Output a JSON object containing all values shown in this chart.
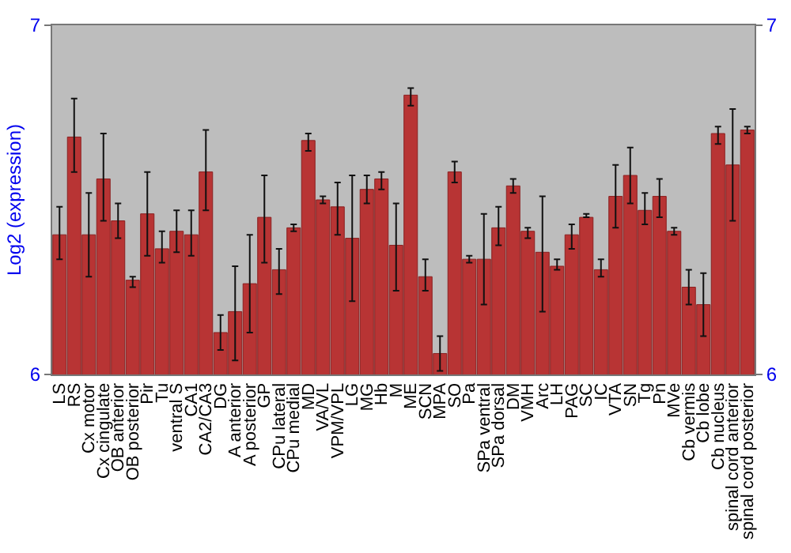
{
  "chart_data": {
    "type": "bar",
    "ylabel": "Log2 (expression)",
    "categories": [
      "LS",
      "RS",
      "Cx motor",
      "Cx cingulate",
      "OB anterior",
      "OB posterior",
      "Pir",
      "Tu",
      "ventral S",
      "CA1",
      "CA2/CA3",
      "DG",
      "A anterior",
      "A posterior",
      "GP",
      "CPu lateral",
      "CPu medial",
      "MD",
      "VA/VL",
      "VPM/VPL",
      "LG",
      "MG",
      "Hb",
      "M",
      "ME",
      "SCN",
      "MPA",
      "SO",
      "Pa",
      "SPa ventral",
      "SPa dorsal",
      "DM",
      "VMH",
      "Arc",
      "LH",
      "PAG",
      "SC",
      "IC",
      "VTA",
      "SN",
      "Tg",
      "Pn",
      "MVe",
      "Cb vermis",
      "Cb lobe",
      "Cb nucleus",
      "spinal cord anterior",
      "spinal cord posterior"
    ],
    "values": [
      6.4,
      6.68,
      6.4,
      6.56,
      6.44,
      6.27,
      6.46,
      6.36,
      6.41,
      6.4,
      6.58,
      6.12,
      6.18,
      6.26,
      6.45,
      6.3,
      6.42,
      6.67,
      6.5,
      6.48,
      6.39,
      6.53,
      6.56,
      6.37,
      6.8,
      6.28,
      6.06,
      6.58,
      6.33,
      6.33,
      6.42,
      6.54,
      6.41,
      6.35,
      6.31,
      6.4,
      6.45,
      6.3,
      6.51,
      6.57,
      6.47,
      6.51,
      6.41,
      6.25,
      6.2,
      6.69,
      6.6,
      6.7
    ],
    "errors": [
      [
        6.33,
        6.48
      ],
      [
        6.58,
        6.79
      ],
      [
        6.28,
        6.52
      ],
      [
        6.44,
        6.69
      ],
      [
        6.39,
        6.49
      ],
      [
        6.25,
        6.28
      ],
      [
        6.34,
        6.58
      ],
      [
        6.32,
        6.41
      ],
      [
        6.35,
        6.47
      ],
      [
        6.34,
        6.47
      ],
      [
        6.47,
        6.7
      ],
      [
        6.07,
        6.17
      ],
      [
        6.04,
        6.31
      ],
      [
        6.12,
        6.4
      ],
      [
        6.32,
        6.57
      ],
      [
        6.23,
        6.36
      ],
      [
        6.41,
        6.43
      ],
      [
        6.64,
        6.69
      ],
      [
        6.49,
        6.51
      ],
      [
        6.4,
        6.55
      ],
      [
        6.21,
        6.57
      ],
      [
        6.49,
        6.57
      ],
      [
        6.53,
        6.58
      ],
      [
        6.24,
        6.49
      ],
      [
        6.77,
        6.82
      ],
      [
        6.24,
        6.33
      ],
      [
        6.01,
        6.11
      ],
      [
        6.55,
        6.61
      ],
      [
        6.32,
        6.34
      ],
      [
        6.2,
        6.46
      ],
      [
        6.37,
        6.48
      ],
      [
        6.52,
        6.56
      ],
      [
        6.39,
        6.42
      ],
      [
        6.18,
        6.51
      ],
      [
        6.3,
        6.33
      ],
      [
        6.36,
        6.43
      ],
      [
        6.45,
        6.46
      ],
      [
        6.28,
        6.33
      ],
      [
        6.42,
        6.6
      ],
      [
        6.49,
        6.65
      ],
      [
        6.43,
        6.52
      ],
      [
        6.45,
        6.56
      ],
      [
        6.4,
        6.42
      ],
      [
        6.2,
        6.3
      ],
      [
        6.11,
        6.29
      ],
      [
        6.66,
        6.71
      ],
      [
        6.44,
        6.76
      ],
      [
        6.69,
        6.71
      ]
    ],
    "color": "#b83434",
    "ylim": [
      6,
      7
    ],
    "yticks": [
      6,
      7
    ],
    "y2lim": [
      6,
      7
    ],
    "y2ticks": [
      6,
      7
    ]
  }
}
